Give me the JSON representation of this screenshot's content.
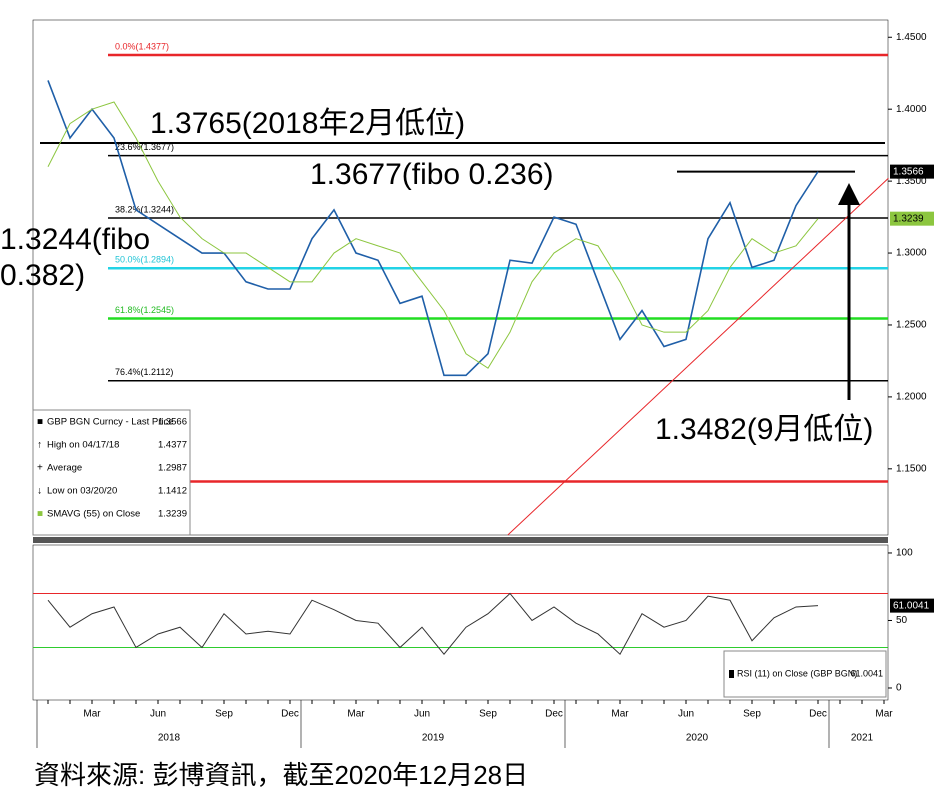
{
  "chart_data": [
    {
      "type": "line",
      "categories": [
        null,
        null,
        "Mar",
        null,
        null,
        "Jun",
        null,
        null,
        "Sep",
        null,
        null,
        "Dec",
        null,
        null,
        "Mar",
        null,
        null,
        "Jun",
        null,
        null,
        "Sep",
        null,
        null,
        "Dec",
        null,
        null,
        "Mar",
        null,
        null,
        "Jun",
        null,
        null,
        "Sep",
        null,
        null,
        "Dec",
        null,
        null,
        "Mar"
      ],
      "year_labels": [
        "2018",
        "2019",
        "2020",
        "2021"
      ],
      "series": [
        {
          "name": "GBP BGN Curncy - Last Price",
          "color": "#1f5fa8",
          "tag_color": "#000000",
          "legend_value": 1.3566,
          "values": [
            1.42,
            1.38,
            1.4,
            1.38,
            1.33,
            1.32,
            1.31,
            1.3,
            1.3,
            1.28,
            1.275,
            1.275,
            1.31,
            1.33,
            1.3,
            1.295,
            1.265,
            1.27,
            1.215,
            1.215,
            1.23,
            1.295,
            1.293,
            1.325,
            1.32,
            1.28,
            1.24,
            1.26,
            1.235,
            1.24,
            1.31,
            1.335,
            1.29,
            1.295,
            1.333,
            1.3566,
            null,
            null,
            null
          ]
        },
        {
          "name": "SMAVG (55) on Close",
          "color": "#8cc63f",
          "tag_color": "#8cc63f",
          "legend_value": 1.3239,
          "values": [
            1.36,
            1.39,
            1.4,
            1.405,
            1.38,
            1.35,
            1.325,
            1.31,
            1.3,
            1.3,
            1.29,
            1.28,
            1.28,
            1.3,
            1.31,
            1.305,
            1.3,
            1.28,
            1.26,
            1.23,
            1.22,
            1.245,
            1.28,
            1.3,
            1.31,
            1.305,
            1.28,
            1.25,
            1.245,
            1.245,
            1.26,
            1.29,
            1.31,
            1.3,
            1.305,
            1.3239,
            null,
            null,
            null
          ]
        }
      ],
      "ylim": [
        1.104,
        1.462
      ],
      "yticks": [
        {
          "value": 1.45,
          "label": "1.4500"
        },
        {
          "value": 1.4,
          "label": "1.4000"
        },
        {
          "value": 1.35,
          "label": "1.3500"
        },
        {
          "value": 1.3,
          "label": "1.3000"
        },
        {
          "value": 1.25,
          "label": "1.2500"
        },
        {
          "value": 1.2,
          "label": "1.2000"
        },
        {
          "value": 1.15,
          "label": "1.1500"
        }
      ],
      "fib_levels": [
        {
          "label": "0.0%(1.4377)",
          "value": 1.4377,
          "color": "#e8262a"
        },
        {
          "label": "23.6%(1.3677)",
          "value": 1.3677,
          "color": "#000000"
        },
        {
          "label": "38.2%(1.3244)",
          "value": 1.3244,
          "color": "#000000"
        },
        {
          "label": "50.0%(1.2894)",
          "value": 1.2894,
          "color": "#22d3e6"
        },
        {
          "label": "61.8%(1.2545)",
          "value": 1.2545,
          "color": "#22dd22"
        },
        {
          "label": "76.4%(1.2112)",
          "value": 1.2112,
          "color": "#000000"
        }
      ],
      "level_lines": [
        {
          "value": 1.1412,
          "color": "#e8262a"
        }
      ],
      "reference_lines": [
        {
          "value": 1.3765,
          "color": "#000000"
        },
        {
          "value": 1.3566,
          "color": "#000000"
        }
      ],
      "trendline": {
        "color": "#e8262a",
        "points": [
          [
            20.9,
            1.104
          ],
          [
            38.2,
            1.352
          ]
        ]
      },
      "annotations": [
        "1.3765(2018年2月低位)",
        "1.3677(fibo 0.236)",
        "1.3244(fibo 0.382)",
        "1.3482(9月低位)"
      ],
      "legend": [
        {
          "label": "High on 04/17/18",
          "value": 1.4377
        },
        {
          "label": "Average",
          "value": 1.2987
        },
        {
          "label": "Low on 03/20/20",
          "value": 1.1412
        }
      ]
    },
    {
      "type": "line",
      "series": [
        {
          "name": "RSI (11) on Close (GBP BGN)",
          "color": "#333333",
          "tag_color": "#000000",
          "legend_value": 61.0041,
          "values": [
            65,
            45,
            55,
            60,
            30,
            40,
            45,
            30,
            55,
            40,
            42,
            40,
            65,
            58,
            50,
            48,
            30,
            45,
            25,
            45,
            55,
            70,
            50,
            60,
            48,
            40,
            25,
            55,
            45,
            50,
            68,
            65,
            35,
            52,
            60,
            61.0041,
            null,
            null,
            null
          ]
        }
      ],
      "ylim": [
        -8.9,
        105.9
      ],
      "yticks": [
        0,
        50,
        100
      ],
      "levels": [
        {
          "value": 70,
          "color": "#e8262a"
        },
        {
          "value": 30,
          "color": "#2ecc2e"
        }
      ]
    }
  ],
  "footer": "資料來源: 彭博資訊，截至2020年12月28日"
}
